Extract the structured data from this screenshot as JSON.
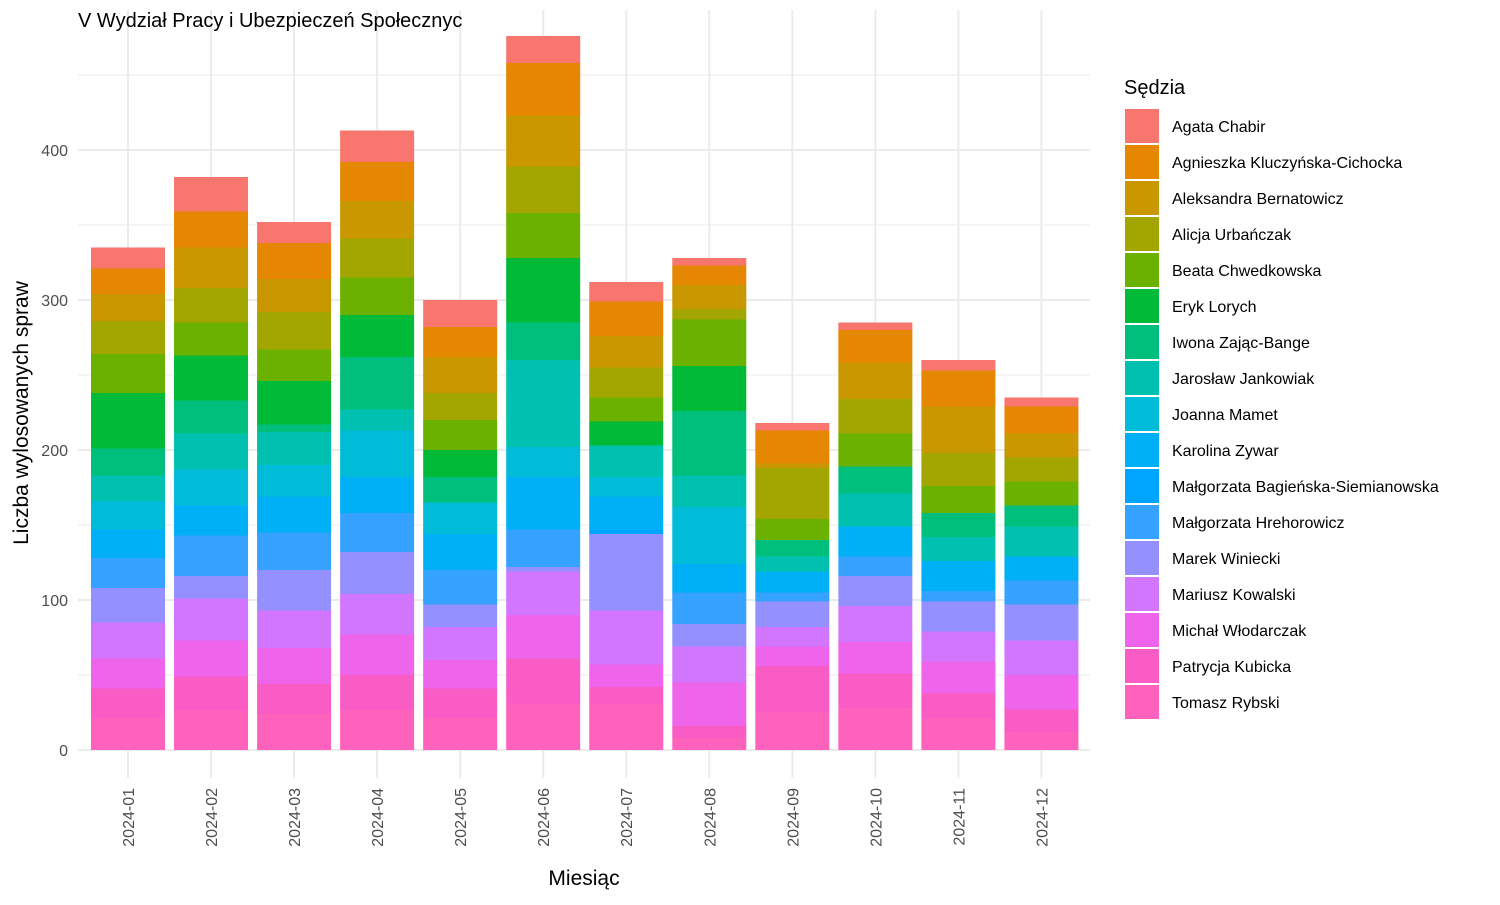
{
  "chart_data": {
    "type": "bar",
    "stacked": true,
    "title": "V Wydział Pracy i Ubezpieczeń Społecznyc",
    "xlabel": "Miesiąc",
    "ylabel": "Liczba wylosowanych spraw",
    "ylim": [
      0,
      470
    ],
    "yticks": [
      0,
      100,
      200,
      300,
      400
    ],
    "grid": true,
    "legend_position": "right",
    "legend_title": "Sędzia",
    "categories": [
      "2024-01",
      "2024-02",
      "2024-03",
      "2024-04",
      "2024-05",
      "2024-06",
      "2024-07",
      "2024-08",
      "2024-09",
      "2024-10",
      "2024-11",
      "2024-12"
    ],
    "series": [
      {
        "name": "Agata Chabir",
        "color": "#F8766D",
        "values": [
          14,
          23,
          14,
          21,
          18,
          18,
          13,
          5,
          5,
          5,
          7,
          6
        ]
      },
      {
        "name": "Agnieszka Kluczyńska-Cichocka",
        "color": "#E58700",
        "values": [
          17,
          24,
          24,
          26,
          20,
          35,
          23,
          13,
          22,
          22,
          24,
          18
        ]
      },
      {
        "name": "Aleksandra Bernatowicz",
        "color": "#C99800",
        "values": [
          18,
          27,
          22,
          25,
          24,
          34,
          21,
          16,
          3,
          24,
          31,
          16
        ]
      },
      {
        "name": "Alicja Urbańczak",
        "color": "#A3A500",
        "values": [
          22,
          23,
          25,
          26,
          18,
          31,
          20,
          7,
          34,
          23,
          22,
          16
        ]
      },
      {
        "name": "Beata Chwedkowska",
        "color": "#6BB100",
        "values": [
          26,
          22,
          21,
          25,
          20,
          30,
          16,
          31,
          14,
          22,
          18,
          16
        ]
      },
      {
        "name": "Eryk Lorych",
        "color": "#00BA38",
        "values": [
          37,
          30,
          29,
          28,
          18,
          43,
          16,
          30,
          0,
          0,
          0,
          0
        ]
      },
      {
        "name": "Iwona Zając-Bange",
        "color": "#00BF7D",
        "values": [
          18,
          22,
          5,
          35,
          17,
          25,
          0,
          43,
          11,
          18,
          16,
          14
        ]
      },
      {
        "name": "Jarosław Jankowiak",
        "color": "#00C0AF",
        "values": [
          17,
          24,
          22,
          14,
          0,
          58,
          21,
          21,
          10,
          22,
          16,
          20
        ]
      },
      {
        "name": "Joanna Mamet",
        "color": "#00BCD8",
        "values": [
          19,
          24,
          21,
          31,
          21,
          20,
          13,
          38,
          0,
          0,
          0,
          0
        ]
      },
      {
        "name": "Karolina Zywar",
        "color": "#00B0F6",
        "values": [
          19,
          20,
          24,
          24,
          24,
          35,
          22,
          19,
          14,
          20,
          20,
          16
        ]
      },
      {
        "name": "Małgorzata Bagieńska-Siemianowska",
        "color": "#00A5FF",
        "values": [
          0,
          0,
          0,
          0,
          0,
          0,
          3,
          0,
          0,
          0,
          0,
          0
        ]
      },
      {
        "name": "Małgorzata Hrehorowicz",
        "color": "#35A2FF",
        "values": [
          20,
          27,
          25,
          26,
          23,
          25,
          0,
          21,
          6,
          13,
          7,
          16
        ]
      },
      {
        "name": "Marek Winiecki",
        "color": "#9590FF",
        "values": [
          23,
          15,
          27,
          28,
          15,
          3,
          51,
          15,
          17,
          20,
          20,
          24
        ]
      },
      {
        "name": "Mariusz Kowalski",
        "color": "#D376FF",
        "values": [
          24,
          28,
          25,
          27,
          22,
          29,
          36,
          24,
          13,
          24,
          20,
          23
        ]
      },
      {
        "name": "Michał Włodarczak",
        "color": "#EE64EB",
        "values": [
          20,
          24,
          24,
          27,
          19,
          29,
          15,
          29,
          13,
          21,
          21,
          23
        ]
      },
      {
        "name": "Patrycja Kubicka",
        "color": "#FA5CC6",
        "values": [
          20,
          23,
          20,
          23,
          19,
          30,
          11,
          8,
          31,
          23,
          17,
          15
        ]
      },
      {
        "name": "Tomasz Rybski",
        "color": "#FF62BC",
        "values": [
          21,
          26,
          24,
          27,
          22,
          31,
          31,
          8,
          25,
          28,
          21,
          12
        ]
      }
    ]
  }
}
